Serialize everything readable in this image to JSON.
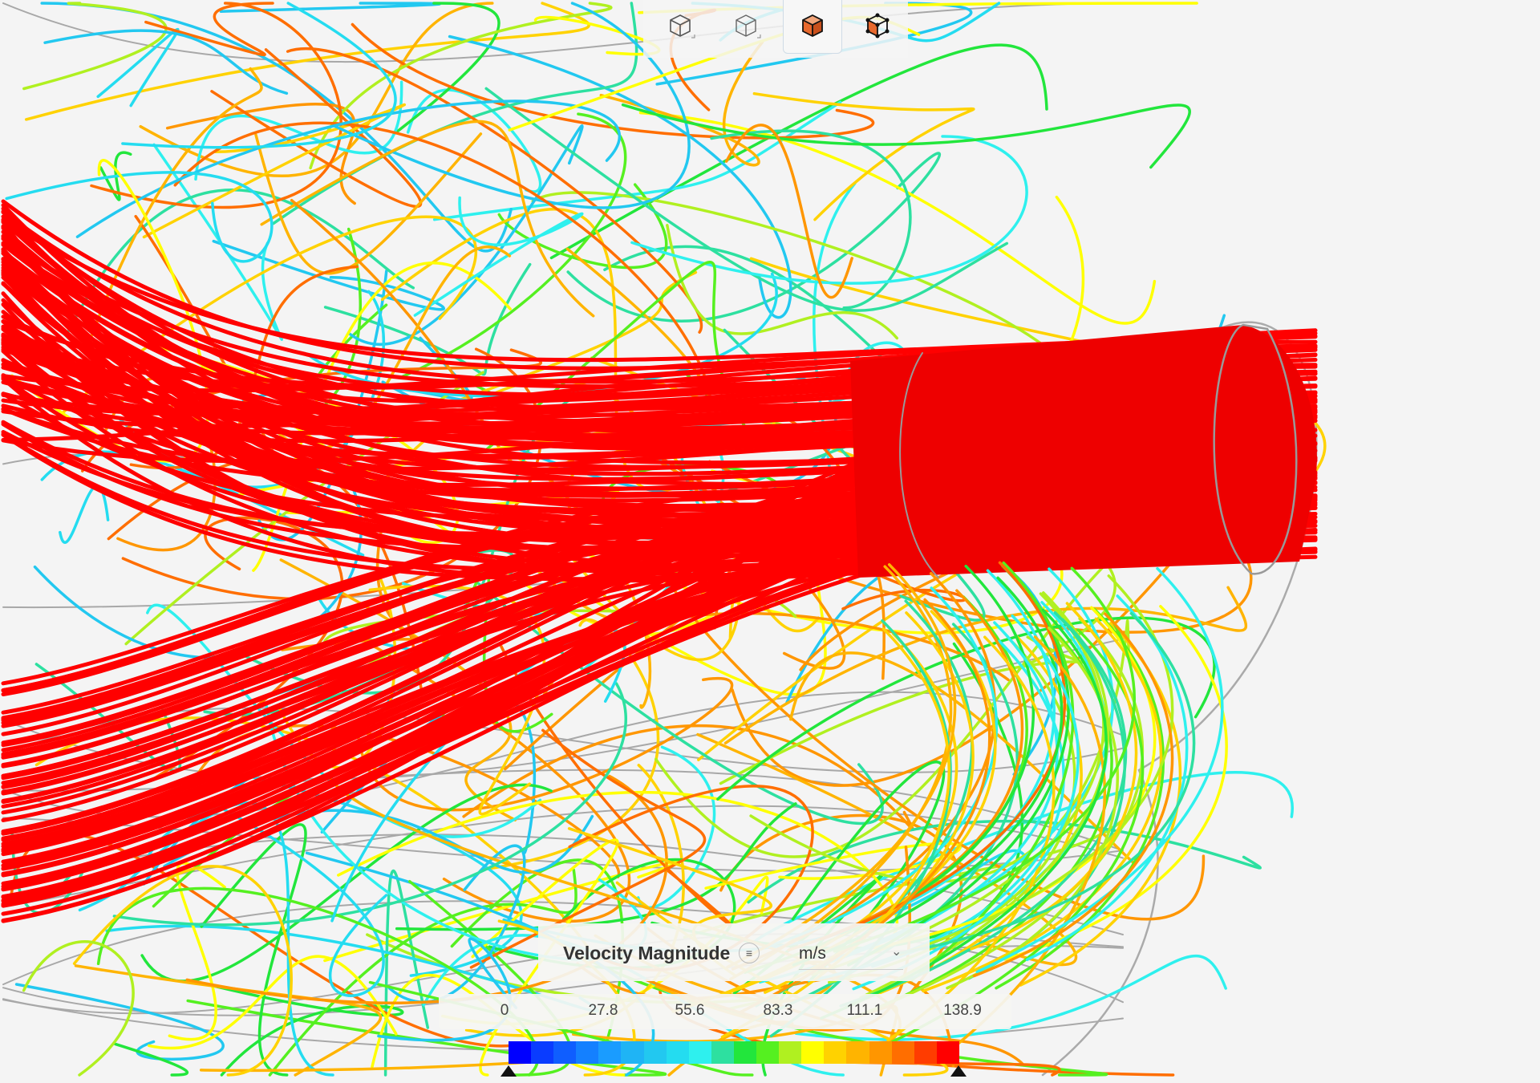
{
  "toolbar": {
    "buttons": [
      {
        "name": "wireframe-view-icon",
        "active": false
      },
      {
        "name": "outline-view-icon",
        "active": false
      },
      {
        "name": "solid-view-icon",
        "active": true
      },
      {
        "name": "solid-edges-view-icon",
        "active": false
      }
    ],
    "accent": "#e8692e"
  },
  "legend": {
    "title": "Velocity Magnitude",
    "info_icon": "≡",
    "unit": "m/s",
    "ticks": [
      "0",
      "27.8",
      "55.6",
      "83.3",
      "111.1",
      "138.9"
    ],
    "colormap": [
      "#0000ff",
      "#0a3cff",
      "#0f5eff",
      "#1480ff",
      "#1a9cff",
      "#1fb4f5",
      "#22c8f0",
      "#24dcf0",
      "#2ef0ee",
      "#2de0a0",
      "#22e63c",
      "#55f020",
      "#b0f020",
      "#ffff00",
      "#ffd200",
      "#ffb400",
      "#ff9600",
      "#ff6e00",
      "#ff3c00",
      "#ff0000"
    ],
    "range": [
      0,
      138.9
    ]
  }
}
